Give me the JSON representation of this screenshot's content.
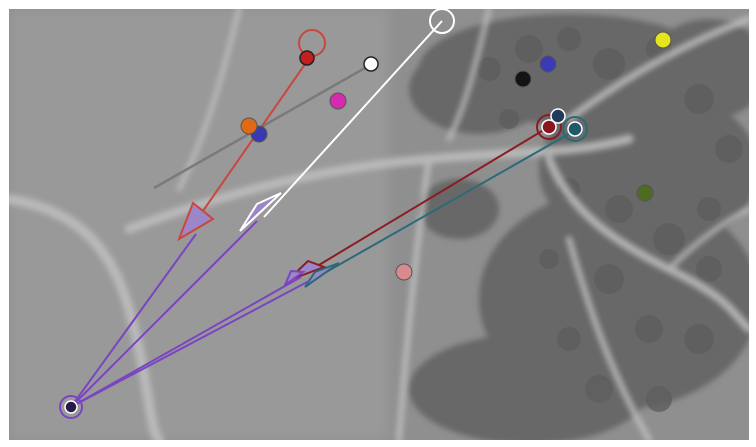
{
  "image": {
    "kind": "grayscale aerial terrain with overlaid trajectory arrows and colored markers",
    "palette": {
      "ground": "#8f8f8f",
      "ground_light": "#a9a9a9",
      "vegetation": "#6a6a6a",
      "path": "#c4c4c4"
    }
  },
  "markers": [
    {
      "name": "yellow-marker",
      "color": "#e5e51e"
    },
    {
      "name": "blue-marker-top",
      "color": "#3b3bb5"
    },
    {
      "name": "black-marker",
      "color": "#141414"
    },
    {
      "name": "magenta-marker",
      "color": "#d62bb0"
    },
    {
      "name": "orange-marker",
      "color": "#e06a14"
    },
    {
      "name": "blue-marker-mid",
      "color": "#3a3ab0"
    },
    {
      "name": "olive-marker",
      "color": "#4e6b22"
    },
    {
      "name": "pink-marker",
      "color": "#d98a8e"
    },
    {
      "name": "darkred-marker",
      "color": "#8a1520"
    },
    {
      "name": "teal-marker",
      "color": "#1f5a6b"
    },
    {
      "name": "navy-marker",
      "color": "#1f3a5a"
    },
    {
      "name": "red-marker",
      "color": "#c02020"
    },
    {
      "name": "white-marker",
      "color": "#ffffff"
    },
    {
      "name": "purple-origin-marker",
      "color": "#2a1a4a"
    }
  ],
  "arrows": [
    {
      "name": "red-trajectory-arrow",
      "color": "#c8473f"
    },
    {
      "name": "white-trajectory-arrow",
      "color": "#ffffff"
    },
    {
      "name": "gray-line",
      "color": "#7a7a7a"
    },
    {
      "name": "darkred-trajectory-arrow",
      "color": "#8a1c24"
    },
    {
      "name": "teal-trajectory-arrow",
      "color": "#2b6a78"
    },
    {
      "name": "purple-trajectory-arrow",
      "color": "#7a45c0"
    }
  ]
}
